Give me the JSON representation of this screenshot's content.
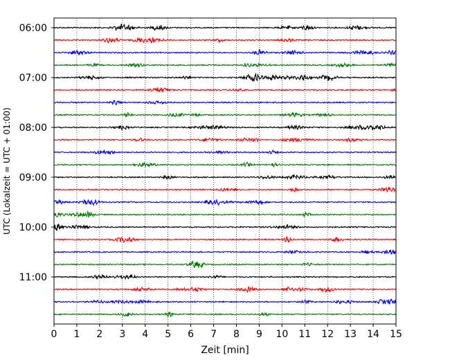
{
  "chart_data": {
    "type": "line",
    "title": "",
    "xlabel": "Zeit  [min]",
    "ylabel": "UTC (Lokalzeit = UTC + 01:00)",
    "xlim": [
      0,
      15
    ],
    "x_ticks": [
      0,
      1,
      2,
      3,
      4,
      5,
      6,
      7,
      8,
      9,
      10,
      11,
      12,
      13,
      14,
      15
    ],
    "y_ticks": [
      "06:00",
      "07:00",
      "08:00",
      "09:00",
      "10:00",
      "11:00"
    ],
    "grid": "vertical dotted at each minute",
    "legend": "none",
    "trace_colors": [
      "#000000",
      "#ff0000",
      "#0000ff",
      "#008000"
    ],
    "start_time": "06:00",
    "trace_interval_min": 15,
    "trace_count": 24,
    "note_highlight": "larger oscillations on 07:00 trace between ~8.5 and ~12.5 min"
  }
}
